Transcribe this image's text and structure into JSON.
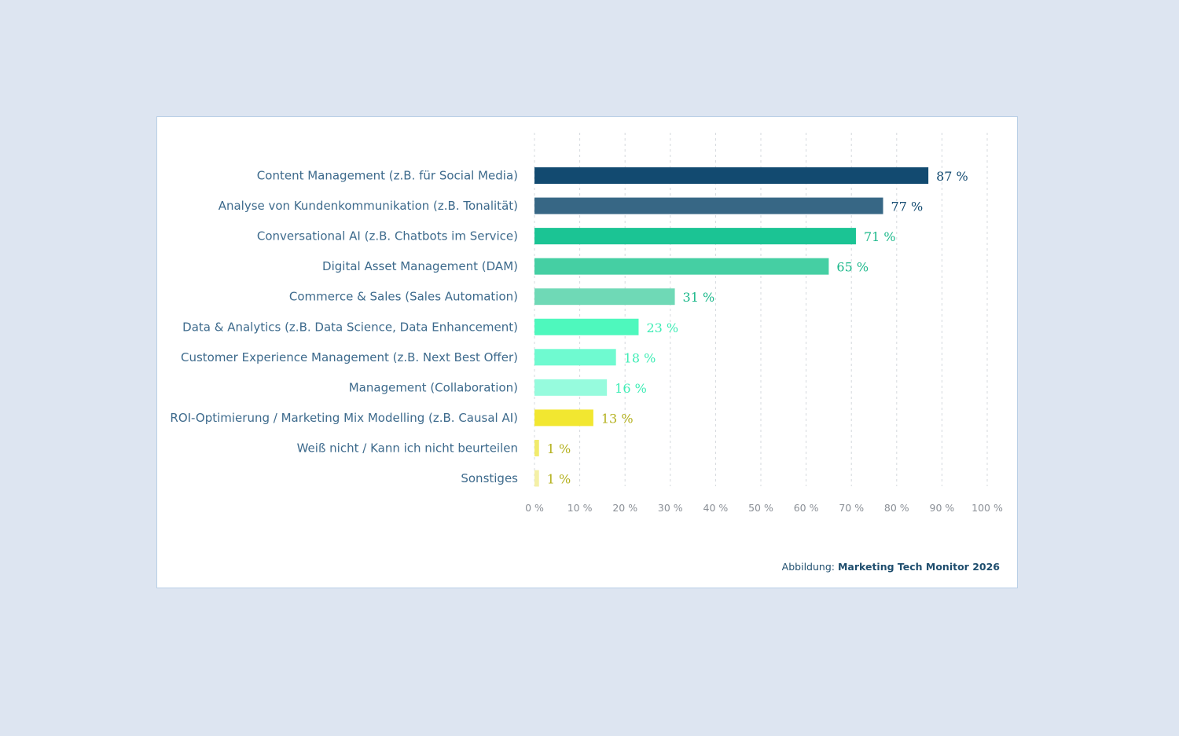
{
  "chart_data": {
    "type": "bar",
    "orientation": "horizontal",
    "categories": [
      "Content Management (z.B. für Social Media)",
      "Analyse von Kundenkommunikation (z.B. Tonalität)",
      "Conversational AI (z.B. Chatbots im Service)",
      "Digital Asset Management (DAM)",
      "Commerce & Sales (Sales Automation)",
      "Data & Analytics (z.B. Data Science, Data Enhancement)",
      "Customer Experience Management (z.B. Next Best Offer)",
      "Management (Collaboration)",
      "ROI-Optimierung / Marketing Mix Modelling (z.B. Causal AI)",
      "Weiß nicht / Kann ich nicht beurteilen",
      "Sonstiges"
    ],
    "values": [
      87,
      77,
      71,
      65,
      31,
      23,
      18,
      16,
      13,
      1,
      1
    ],
    "value_labels": [
      "87 %",
      "77 %",
      "71 %",
      "65 %",
      "31 %",
      "23 %",
      "18 %",
      "16 %",
      "13 %",
      "1 %",
      "1 %"
    ],
    "bar_colors": [
      "#124a70",
      "#376785",
      "#1bc494",
      "#45cfa3",
      "#6fd9b6",
      "#4ef8bd",
      "#6ffad0",
      "#96fbdd",
      "#f2e730",
      "#f1eb6c",
      "#f4f0a6"
    ],
    "value_label_colors": [
      "#124a70",
      "#124a70",
      "#1bb88a",
      "#1bb88a",
      "#1bb88a",
      "#3eedb5",
      "#3eedb5",
      "#3eedb5",
      "#b3b01c",
      "#b3b01c",
      "#b3b01c"
    ],
    "xlim": [
      0,
      100
    ],
    "xticks": [
      0,
      10,
      20,
      30,
      40,
      50,
      60,
      70,
      80,
      90,
      100
    ],
    "xtick_labels": [
      "0 %",
      "10 %",
      "20 %",
      "30 %",
      "40 %",
      "50 %",
      "60 %",
      "70 %",
      "80 %",
      "90 %",
      "100 %"
    ],
    "grid": true,
    "title": "",
    "xlabel": "",
    "ylabel": ""
  },
  "source": {
    "prefix": "Abbildung:",
    "name": "Marketing Tech Monitor 2026"
  }
}
